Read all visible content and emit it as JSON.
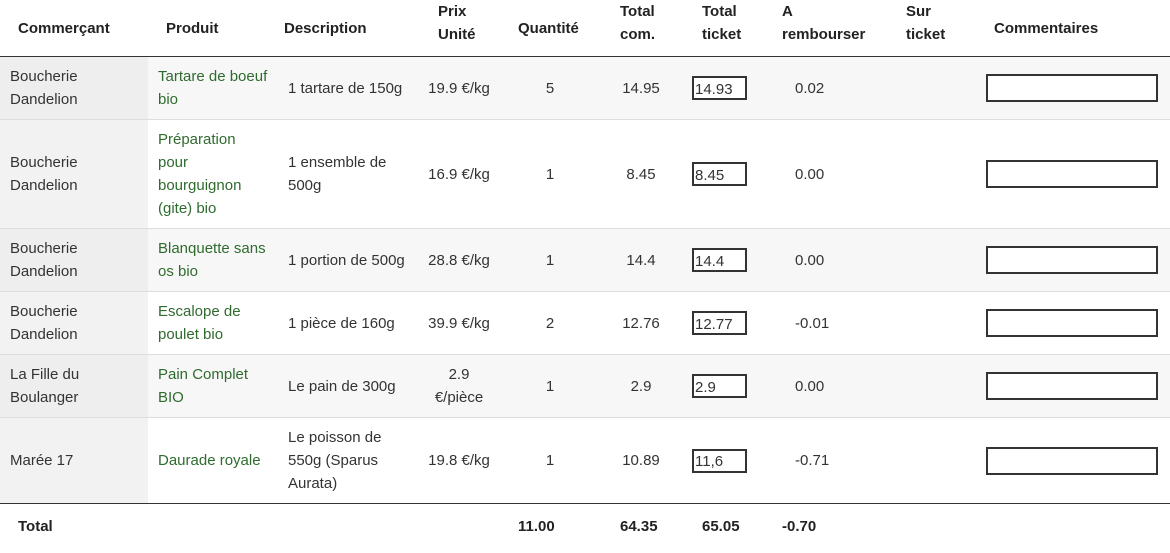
{
  "headers": {
    "merchant": "Commerçant",
    "product": "Produit",
    "description": "Description",
    "unit_price_1": "Prix",
    "unit_price_2": "Unité",
    "quantity": "Quantité",
    "total_com_1": "Total",
    "total_com_2": "com.",
    "total_ticket_1": "Total",
    "total_ticket_2": "ticket",
    "refund_1": "A",
    "refund_2": "rembourser",
    "on_ticket_1": "Sur",
    "on_ticket_2": "ticket",
    "comments": "Commentaires"
  },
  "rows": [
    {
      "merchant": "Boucherie Dandelion",
      "product": "Tartare de boeuf bio",
      "description": "1 tartare de 150g",
      "unit_price": "19.9 €/kg",
      "quantity": "5",
      "total_com": "14.95",
      "total_ticket": "14.93",
      "refund": "0.02",
      "on_ticket": "",
      "comment": ""
    },
    {
      "merchant": "Boucherie Dandelion",
      "product": "Préparation pour bourguignon (gite) bio",
      "description": "1 ensemble de 500g",
      "unit_price": "16.9 €/kg",
      "quantity": "1",
      "total_com": "8.45",
      "total_ticket": "8.45",
      "refund": "0.00",
      "on_ticket": "",
      "comment": ""
    },
    {
      "merchant": "Boucherie Dandelion",
      "product": "Blanquette sans os bio",
      "description": "1 portion de 500g",
      "unit_price": "28.8 €/kg",
      "quantity": "1",
      "total_com": "14.4",
      "total_ticket": "14.4",
      "refund": "0.00",
      "on_ticket": "",
      "comment": ""
    },
    {
      "merchant": "Boucherie Dandelion",
      "product": "Escalope de poulet bio",
      "description": "1 pièce de 160g",
      "unit_price": "39.9 €/kg",
      "quantity": "2",
      "total_com": "12.76",
      "total_ticket": "12.77",
      "refund": "-0.01",
      "on_ticket": "",
      "comment": ""
    },
    {
      "merchant": "La Fille du Boulanger",
      "product": "Pain Complet BIO",
      "description": "Le pain de 300g",
      "unit_price": "2.9 €/pièce",
      "quantity": "1",
      "total_com": "2.9",
      "total_ticket": "2.9",
      "refund": "0.00",
      "on_ticket": "",
      "comment": ""
    },
    {
      "merchant": "Marée 17",
      "product": "Daurade royale",
      "description": "Le poisson de 550g (Sparus Aurata)",
      "unit_price": "19.8 €/kg",
      "quantity": "1",
      "total_com": "10.89",
      "total_ticket": "11,6",
      "refund": "-0.71",
      "on_ticket": "",
      "comment": ""
    }
  ],
  "footer": {
    "label": "Total",
    "quantity": "11.00",
    "total_com": "64.35",
    "total_ticket": "65.05",
    "refund": "-0.70"
  },
  "colors": {
    "product_link": "#2f6b2f",
    "row_alt": "#f7f7f7",
    "border": "#333333"
  }
}
